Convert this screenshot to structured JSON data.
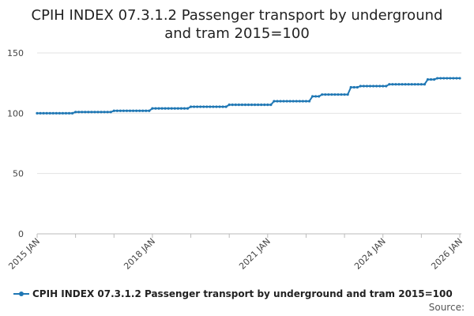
{
  "chart_data": {
    "type": "line",
    "title": "CPIH INDEX 07.3.1.2 Passenger transport by underground and tram 2015=100",
    "xlabel": "",
    "ylabel": "",
    "ylim": [
      0,
      150
    ],
    "yticks": [
      0,
      50,
      100,
      150
    ],
    "xlim": [
      "2015-01",
      "2026-01"
    ],
    "xtick_labels": [
      "2015 JAN",
      "2018 JAN",
      "2021 JAN",
      "2024 JAN",
      "2026 JAN"
    ],
    "grid": "horizontal",
    "legend_position": "bottom",
    "color": "#1f77b4",
    "series": [
      {
        "name": "CPIH INDEX 07.3.1.2 Passenger transport by underground and tram 2015=100",
        "steps": [
          {
            "from": "2015-01",
            "value": 100.0
          },
          {
            "from": "2016-01",
            "value": 101.0
          },
          {
            "from": "2017-01",
            "value": 102.0
          },
          {
            "from": "2018-01",
            "value": 104.0
          },
          {
            "from": "2019-01",
            "value": 105.4
          },
          {
            "from": "2020-01",
            "value": 107.0
          },
          {
            "from": "2021-03",
            "value": 110.0
          },
          {
            "from": "2022-03",
            "value": 114.0
          },
          {
            "from": "2022-06",
            "value": 115.5
          },
          {
            "from": "2023-03",
            "value": 121.5
          },
          {
            "from": "2023-06",
            "value": 122.5
          },
          {
            "from": "2024-03",
            "value": 124.0
          },
          {
            "from": "2025-03",
            "value": 128.0
          },
          {
            "from": "2025-06",
            "value": 129.0
          }
        ],
        "end": "2026-01"
      }
    ]
  },
  "footer": {
    "source_label": "Source:"
  }
}
